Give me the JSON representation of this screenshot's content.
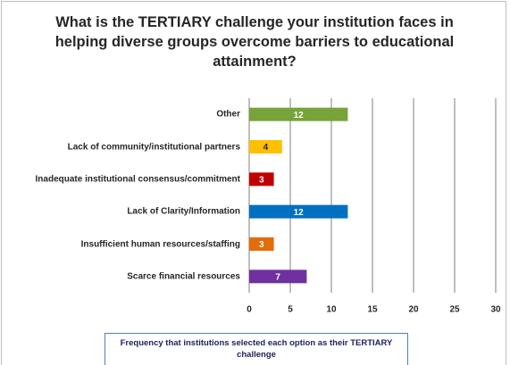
{
  "chart_data": {
    "type": "bar",
    "orientation": "horizontal",
    "title": "What is the TERTIARY challenge your institution faces in helping diverse groups overcome barriers to educational attainment?",
    "categories": [
      "Other",
      "Lack of community/institutional partners",
      "Inadequate institutional consensus/commitment",
      "Lack of Clarity/Information",
      "Insufficient human resources/staffing",
      "Scarce financial resources"
    ],
    "values": [
      12,
      4,
      3,
      12,
      3,
      7
    ],
    "colors": [
      "#77a33a",
      "#ffc000",
      "#c00000",
      "#0070c0",
      "#e46c0a",
      "#7030a0"
    ],
    "xlim": [
      0,
      30
    ],
    "xticks": [
      0,
      5,
      10,
      15,
      20,
      25,
      30
    ],
    "grid": true,
    "caption": "Frequency that institutions selected each option as their TERTIARY challenge"
  }
}
